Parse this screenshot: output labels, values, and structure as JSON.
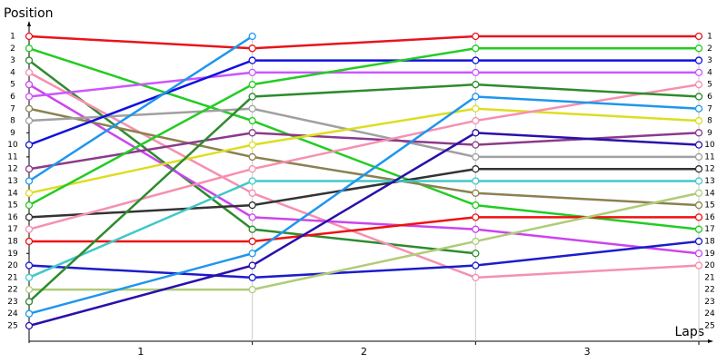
{
  "chart_data": {
    "type": "line",
    "y_label": "Position",
    "x_label": "Laps",
    "categories": [
      "1",
      "2",
      "3"
    ],
    "ylim": [
      1,
      25
    ],
    "yticks": [
      1,
      2,
      3,
      4,
      5,
      6,
      7,
      8,
      9,
      10,
      11,
      12,
      13,
      14,
      15,
      16,
      17,
      18,
      19,
      20,
      21,
      22,
      23,
      24,
      25
    ],
    "y_inverted": true,
    "series": [
      {
        "color": "#e8141b",
        "start": 1,
        "values": [
          2,
          1,
          1
        ]
      },
      {
        "color": "#22cc22",
        "start": 2,
        "values": [
          8,
          15,
          17
        ]
      },
      {
        "color": "#2e8b2e",
        "start": 3,
        "values": [
          17,
          19,
          null
        ]
      },
      {
        "color": "#f590b0",
        "start": 4,
        "values": [
          14,
          21,
          20
        ]
      },
      {
        "color": "#cc44ee",
        "start": 5,
        "values": [
          16,
          17,
          19
        ]
      },
      {
        "color": "#cc55ff",
        "start": 6,
        "values": [
          4,
          4,
          4
        ]
      },
      {
        "color": "#8b8150",
        "start": 7,
        "values": [
          11,
          14,
          15
        ]
      },
      {
        "color": "#a0a0a0",
        "start": 8,
        "values": [
          7,
          11,
          11
        ]
      },
      {
        "color": "#1010dd",
        "start": 10,
        "values": [
          3,
          3,
          3
        ]
      },
      {
        "color": "#8b3a8b",
        "start": 12,
        "values": [
          9,
          10,
          9
        ]
      },
      {
        "color": "#1e96ee",
        "start": 13,
        "values": [
          1,
          null,
          null
        ]
      },
      {
        "color": "#dddd22",
        "start": 14,
        "values": [
          10,
          7,
          8
        ]
      },
      {
        "color": "#22cc22",
        "start": 15,
        "values": [
          5,
          2,
          2
        ]
      },
      {
        "color": "#333333",
        "start": 16,
        "values": [
          15,
          12,
          12
        ]
      },
      {
        "color": "#f590b0",
        "start": 17,
        "values": [
          12,
          8,
          5
        ]
      },
      {
        "color": "#ee1111",
        "start": 18,
        "values": [
          18,
          16,
          16
        ]
      },
      {
        "color": "#1c1ccc",
        "start": 20,
        "values": [
          21,
          20,
          18
        ]
      },
      {
        "color": "#40c8c8",
        "start": 21,
        "values": [
          13,
          13,
          13
        ]
      },
      {
        "color": "#b0cc78",
        "start": 22,
        "values": [
          22,
          18,
          14
        ]
      },
      {
        "color": "#2e8b2e",
        "start": 23,
        "values": [
          6,
          5,
          6
        ]
      },
      {
        "color": "#1e96ee",
        "start": 24,
        "values": [
          19,
          6,
          7
        ]
      },
      {
        "color": "#2a10aa",
        "start": 25,
        "values": [
          20,
          9,
          10
        ]
      }
    ]
  }
}
